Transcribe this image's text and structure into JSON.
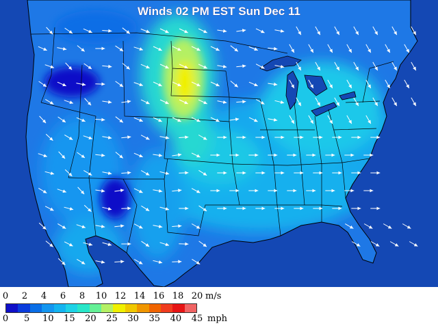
{
  "map": {
    "title": "Winds 02 PM EST Sun Dec 11",
    "ocean_color": "#1448b4",
    "land_base_color": "#1e78e6",
    "border_color": "#000000",
    "arrow_color": "#ffffff"
  },
  "legend": {
    "ms_unit": "m/s",
    "mph_unit": "mph",
    "ms_ticks": [
      "0",
      "2",
      "4",
      "6",
      "8",
      "10",
      "12",
      "14",
      "16",
      "18",
      "20"
    ],
    "mph_ticks": [
      "0",
      "5",
      "10",
      "15",
      "20",
      "25",
      "30",
      "35",
      "40",
      "45"
    ],
    "colors": [
      "#1010c8",
      "#0a3cdc",
      "#0a6ee6",
      "#1496f0",
      "#14b4f0",
      "#1ed2e6",
      "#28e6c8",
      "#64f096",
      "#b4f064",
      "#f0f000",
      "#f0c800",
      "#f09600",
      "#f06400",
      "#f03c1e",
      "#e61414",
      "#f06464"
    ]
  }
}
